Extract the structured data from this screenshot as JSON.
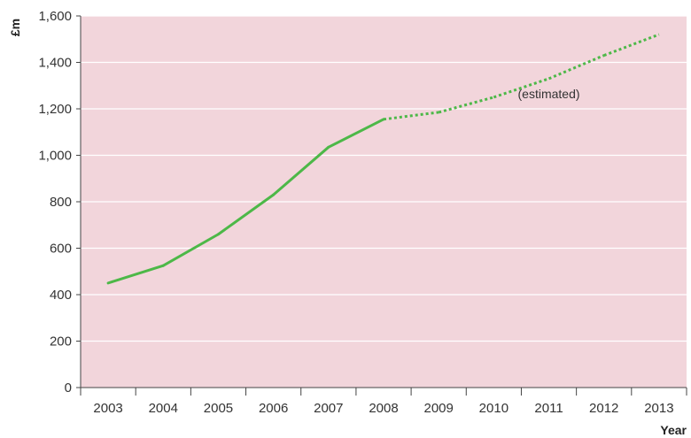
{
  "chart_data": {
    "type": "line",
    "x": [
      "2003",
      "2004",
      "2005",
      "2006",
      "2007",
      "2008",
      "2009",
      "2010",
      "2011",
      "2012",
      "2013"
    ],
    "series": [
      {
        "values": [
          450,
          525,
          660,
          830,
          1035,
          1155,
          1185,
          1250,
          1330,
          1430,
          1520
        ],
        "style": [
          "solid",
          "solid",
          "solid",
          "solid",
          "solid",
          "solid",
          "dotted",
          "dotted",
          "dotted",
          "dotted",
          "dotted"
        ]
      }
    ],
    "ylabel": "£m",
    "xlabel": "Year",
    "ylim": [
      0,
      1600
    ],
    "yticks": [
      0,
      200,
      400,
      600,
      800,
      1000,
      1200,
      1400,
      1600
    ],
    "ytick_labels": [
      "0",
      "200",
      "400",
      "600",
      "800",
      "1,000",
      "1,200",
      "1,400",
      "1,600"
    ],
    "annotations": [
      {
        "text": "(estimated)",
        "x": "2011",
        "y": 1245
      }
    ],
    "grid": "horizontal",
    "colors": {
      "background": "#f2d5db",
      "line": "#4db848",
      "grid": "#ffffff"
    }
  }
}
